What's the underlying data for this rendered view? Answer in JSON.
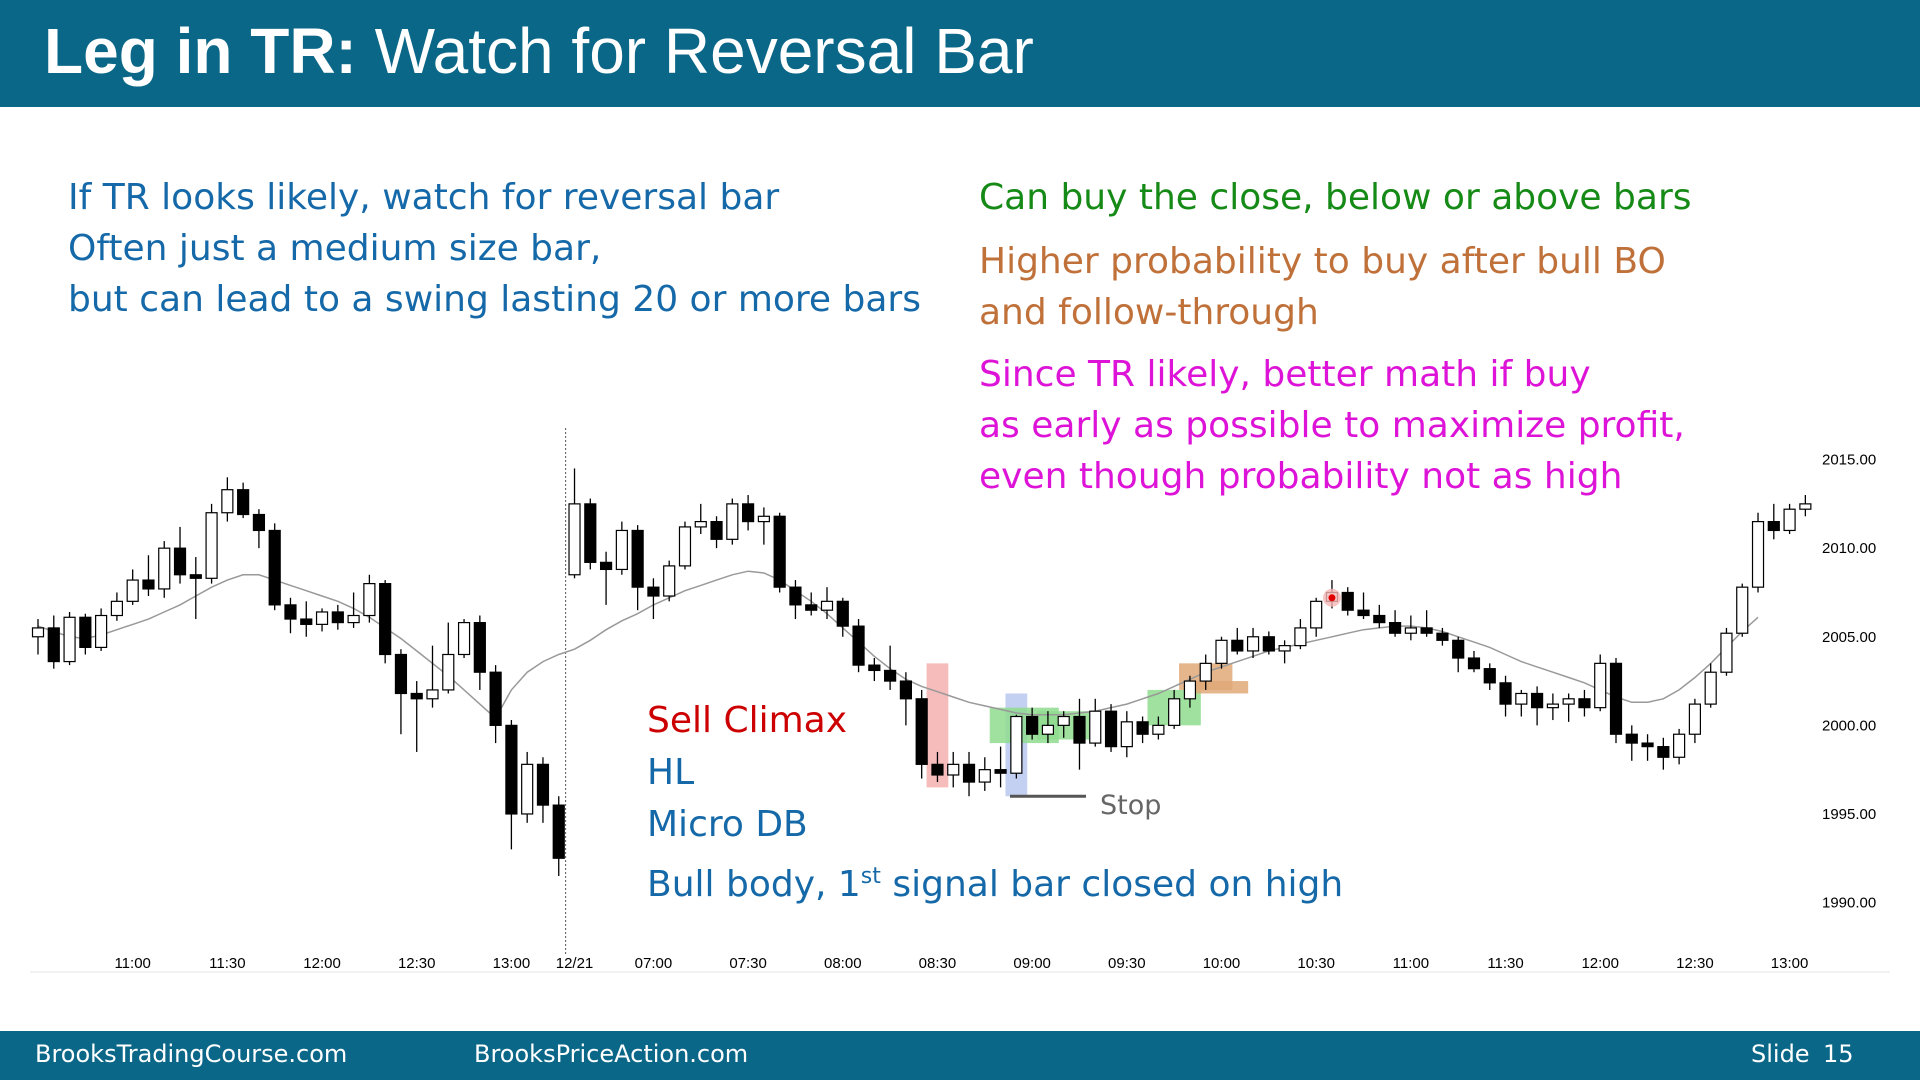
{
  "slide": {
    "title_bold": "Leg in TR:",
    "title_rest": " Watch for Reversal Bar",
    "left_notes": [
      "If TR looks likely, watch for reversal bar",
      "Often just a medium size bar,",
      "but can lead to a swing lasting 20 or more bars"
    ],
    "right_green": "Can buy the close, below or above bars",
    "right_orange": [
      "Higher probability to buy after bull BO",
      "and follow-through"
    ],
    "right_magenta": [
      "Since TR likely, better math if buy",
      "as early as possible to maximize profit,",
      "even though probability not as high"
    ],
    "chart_labels": {
      "sell_climax": "Sell Climax",
      "hl": "HL",
      "micro_db": "Micro DB",
      "bull_body_pre": "Bull body, 1",
      "bull_body_sup": "st",
      "bull_body_post": " signal bar closed on high",
      "stop": "Stop"
    },
    "footer": {
      "site1": "BrooksTradingCourse.com",
      "site2": "BrooksPriceAction.com",
      "slide_label": "Slide",
      "slide_number": "15"
    },
    "colors": {
      "header_bg": "#0b6788",
      "blue_text": "#1569a8",
      "green_text": "#168a16",
      "orange_text": "#c0713a",
      "magenta_text": "#dd14d8",
      "red_text": "#cc0000"
    }
  },
  "chart_data": {
    "type": "candlestick",
    "y_ticks": [
      "2015.00",
      "2010.00",
      "2005.00",
      "2000.00",
      "1995.00",
      "1990.00"
    ],
    "y_tick_values": [
      2015,
      2010,
      2005,
      2000,
      1995,
      1990
    ],
    "ylim": [
      1988,
      2016.5
    ],
    "x_ticks": [
      "11:00",
      "11:30",
      "12:00",
      "12:30",
      "13:00",
      "12/21",
      "07:00",
      "07:30",
      "08:00",
      "08:30",
      "09:00",
      "09:30",
      "10:00",
      "10:30",
      "11:00",
      "11:30",
      "12:00",
      "12:30",
      "13:00"
    ],
    "x_tick_bar_index": [
      6,
      12,
      18,
      24,
      30,
      34,
      39,
      45,
      51,
      57,
      63,
      69,
      75,
      81,
      87,
      93,
      99,
      105,
      111
    ],
    "session_break_bar": 34,
    "grid": false,
    "legend": "none",
    "moving_average": [
      2005.6,
      2005.3,
      2005.0,
      2004.9,
      2005.1,
      2005.4,
      2005.7,
      2006.0,
      2006.4,
      2006.8,
      2007.3,
      2007.8,
      2008.2,
      2008.5,
      2008.5,
      2008.2,
      2007.9,
      2007.6,
      2007.3,
      2007.0,
      2006.6,
      2006.1,
      2005.5,
      2004.9,
      2004.2,
      2003.5,
      2002.8,
      2002.0,
      2001.2,
      2000.4,
      2002.0,
      2003.0,
      2003.6,
      2004.0,
      2004.3,
      2004.8,
      2005.4,
      2005.9,
      2006.3,
      2006.8,
      2007.2,
      2007.6,
      2007.9,
      2008.2,
      2008.5,
      2008.7,
      2008.6,
      2008.2,
      2007.6,
      2007.0,
      2006.3,
      2005.5,
      2004.7,
      2003.9,
      2003.2,
      2002.6,
      2002.2,
      2001.9,
      2001.6,
      2001.3,
      2001.1,
      2000.9,
      2000.7,
      2000.6,
      2000.6,
      2000.6,
      2000.7,
      2000.8,
      2001.0,
      2001.2,
      2001.5,
      2001.8,
      2002.2,
      2002.6,
      2003.0,
      2003.3,
      2003.6,
      2003.9,
      2004.2,
      2004.4,
      2004.6,
      2004.8,
      2005.0,
      2005.2,
      2005.4,
      2005.5,
      2005.6,
      2005.6,
      2005.5,
      2005.3,
      2005.0,
      2004.7,
      2004.4,
      2004.0,
      2003.6,
      2003.3,
      2003.0,
      2002.7,
      2002.4,
      2002.0,
      2001.6,
      2001.3,
      2001.3,
      2001.5,
      2002.0,
      2002.7,
      2003.5,
      2004.4,
      2005.3,
      2006.1
    ],
    "bars": [
      {
        "o": 2005.0,
        "h": 2006.0,
        "l": 2004.0,
        "c": 2005.5
      },
      {
        "o": 2005.5,
        "h": 2006.2,
        "l": 2003.2,
        "c": 2003.6
      },
      {
        "o": 2003.6,
        "h": 2006.4,
        "l": 2003.4,
        "c": 2006.1
      },
      {
        "o": 2006.1,
        "h": 2006.3,
        "l": 2004.0,
        "c": 2004.4
      },
      {
        "o": 2004.4,
        "h": 2006.6,
        "l": 2004.2,
        "c": 2006.2
      },
      {
        "o": 2006.2,
        "h": 2007.5,
        "l": 2005.9,
        "c": 2007.0
      },
      {
        "o": 2007.0,
        "h": 2008.8,
        "l": 2006.8,
        "c": 2008.2
      },
      {
        "o": 2008.2,
        "h": 2009.6,
        "l": 2007.3,
        "c": 2007.7
      },
      {
        "o": 2007.7,
        "h": 2010.4,
        "l": 2007.2,
        "c": 2010.0
      },
      {
        "o": 2010.0,
        "h": 2011.2,
        "l": 2008.0,
        "c": 2008.5
      },
      {
        "o": 2008.5,
        "h": 2009.5,
        "l": 2006.0,
        "c": 2008.3
      },
      {
        "o": 2008.3,
        "h": 2012.5,
        "l": 2008.0,
        "c": 2012.0
      },
      {
        "o": 2012.0,
        "h": 2014.0,
        "l": 2011.5,
        "c": 2013.3
      },
      {
        "o": 2013.3,
        "h": 2013.7,
        "l": 2011.7,
        "c": 2011.9
      },
      {
        "o": 2011.9,
        "h": 2012.2,
        "l": 2010.0,
        "c": 2011.0
      },
      {
        "o": 2011.0,
        "h": 2011.4,
        "l": 2006.5,
        "c": 2006.8
      },
      {
        "o": 2006.8,
        "h": 2007.2,
        "l": 2005.2,
        "c": 2006.0
      },
      {
        "o": 2006.0,
        "h": 2007.0,
        "l": 2005.0,
        "c": 2005.7
      },
      {
        "o": 2005.7,
        "h": 2006.6,
        "l": 2005.3,
        "c": 2006.4
      },
      {
        "o": 2006.4,
        "h": 2006.8,
        "l": 2005.4,
        "c": 2005.8
      },
      {
        "o": 2005.8,
        "h": 2007.5,
        "l": 2005.5,
        "c": 2006.2
      },
      {
        "o": 2006.2,
        "h": 2008.5,
        "l": 2005.8,
        "c": 2008.0
      },
      {
        "o": 2008.0,
        "h": 2008.2,
        "l": 2003.5,
        "c": 2004.0
      },
      {
        "o": 2004.0,
        "h": 2004.3,
        "l": 1999.5,
        "c": 2001.8
      },
      {
        "o": 2001.8,
        "h": 2002.5,
        "l": 1998.5,
        "c": 2001.5
      },
      {
        "o": 2001.5,
        "h": 2004.5,
        "l": 2001.0,
        "c": 2002.0
      },
      {
        "o": 2002.0,
        "h": 2005.8,
        "l": 2001.8,
        "c": 2004.0
      },
      {
        "o": 2004.0,
        "h": 2006.0,
        "l": 2003.8,
        "c": 2005.8
      },
      {
        "o": 2005.8,
        "h": 2006.2,
        "l": 2002.0,
        "c": 2003.0
      },
      {
        "o": 2003.0,
        "h": 2003.4,
        "l": 1999.0,
        "c": 2000.0
      },
      {
        "o": 2000.0,
        "h": 2000.3,
        "l": 1993.0,
        "c": 1995.0
      },
      {
        "o": 1995.0,
        "h": 1998.5,
        "l": 1994.5,
        "c": 1997.8
      },
      {
        "o": 1997.8,
        "h": 1998.2,
        "l": 1994.5,
        "c": 1995.5
      },
      {
        "o": 1995.5,
        "h": 1996.0,
        "l": 1991.5,
        "c": 1992.5
      },
      {
        "o": 2008.5,
        "h": 2014.5,
        "l": 2008.3,
        "c": 2012.5
      },
      {
        "o": 2012.5,
        "h": 2012.8,
        "l": 2008.8,
        "c": 2009.2
      },
      {
        "o": 2009.2,
        "h": 2009.8,
        "l": 2006.8,
        "c": 2008.8
      },
      {
        "o": 2008.8,
        "h": 2011.5,
        "l": 2008.5,
        "c": 2011.0
      },
      {
        "o": 2011.0,
        "h": 2011.3,
        "l": 2006.5,
        "c": 2007.8
      },
      {
        "o": 2007.8,
        "h": 2008.3,
        "l": 2006.0,
        "c": 2007.3
      },
      {
        "o": 2007.3,
        "h": 2009.3,
        "l": 2007.0,
        "c": 2009.0
      },
      {
        "o": 2009.0,
        "h": 2011.5,
        "l": 2008.8,
        "c": 2011.2
      },
      {
        "o": 2011.2,
        "h": 2012.5,
        "l": 2010.8,
        "c": 2011.5
      },
      {
        "o": 2011.5,
        "h": 2011.8,
        "l": 2010.0,
        "c": 2010.5
      },
      {
        "o": 2010.5,
        "h": 2012.8,
        "l": 2010.2,
        "c": 2012.5
      },
      {
        "o": 2012.5,
        "h": 2013.0,
        "l": 2011.0,
        "c": 2011.5
      },
      {
        "o": 2011.5,
        "h": 2012.3,
        "l": 2010.2,
        "c": 2011.8
      },
      {
        "o": 2011.8,
        "h": 2012.0,
        "l": 2007.5,
        "c": 2007.8
      },
      {
        "o": 2007.8,
        "h": 2008.2,
        "l": 2006.0,
        "c": 2006.8
      },
      {
        "o": 2006.8,
        "h": 2007.5,
        "l": 2006.2,
        "c": 2006.5
      },
      {
        "o": 2006.5,
        "h": 2007.8,
        "l": 2006.0,
        "c": 2007.0
      },
      {
        "o": 2007.0,
        "h": 2007.2,
        "l": 2005.0,
        "c": 2005.6
      },
      {
        "o": 2005.6,
        "h": 2006.0,
        "l": 2003.0,
        "c": 2003.4
      },
      {
        "o": 2003.4,
        "h": 2003.8,
        "l": 2002.5,
        "c": 2003.1
      },
      {
        "o": 2003.1,
        "h": 2004.5,
        "l": 2002.0,
        "c": 2002.5
      },
      {
        "o": 2002.5,
        "h": 2003.0,
        "l": 2000.0,
        "c": 2001.5
      },
      {
        "o": 2001.5,
        "h": 2002.0,
        "l": 1997.0,
        "c": 1997.8
      },
      {
        "o": 1997.8,
        "h": 1998.5,
        "l": 1996.8,
        "c": 1997.2
      },
      {
        "o": 1997.2,
        "h": 1998.5,
        "l": 1996.5,
        "c": 1997.8
      },
      {
        "o": 1997.8,
        "h": 1998.5,
        "l": 1996.0,
        "c": 1996.8
      },
      {
        "o": 1996.8,
        "h": 1998.2,
        "l": 1996.3,
        "c": 1997.5
      },
      {
        "o": 1997.5,
        "h": 1998.8,
        "l": 1996.5,
        "c": 1997.3
      },
      {
        "o": 1997.3,
        "h": 2000.6,
        "l": 1997.0,
        "c": 2000.5
      },
      {
        "o": 2000.5,
        "h": 2001.0,
        "l": 1999.2,
        "c": 1999.5
      },
      {
        "o": 1999.5,
        "h": 2000.8,
        "l": 1999.0,
        "c": 2000.0
      },
      {
        "o": 2000.0,
        "h": 2000.8,
        "l": 1999.3,
        "c": 2000.5
      },
      {
        "o": 2000.5,
        "h": 2001.5,
        "l": 1997.5,
        "c": 1999.0
      },
      {
        "o": 1999.0,
        "h": 2001.5,
        "l": 1998.8,
        "c": 2000.8
      },
      {
        "o": 2000.8,
        "h": 2001.2,
        "l": 1998.5,
        "c": 1998.8
      },
      {
        "o": 1998.8,
        "h": 2000.8,
        "l": 1998.2,
        "c": 2000.2
      },
      {
        "o": 2000.2,
        "h": 2000.5,
        "l": 1999.0,
        "c": 1999.5
      },
      {
        "o": 1999.5,
        "h": 2000.5,
        "l": 1999.2,
        "c": 2000.0
      },
      {
        "o": 2000.0,
        "h": 2002.0,
        "l": 1999.8,
        "c": 2001.5
      },
      {
        "o": 2001.5,
        "h": 2002.8,
        "l": 2001.0,
        "c": 2002.5
      },
      {
        "o": 2002.5,
        "h": 2004.0,
        "l": 2002.0,
        "c": 2003.5
      },
      {
        "o": 2003.5,
        "h": 2005.0,
        "l": 2003.2,
        "c": 2004.8
      },
      {
        "o": 2004.8,
        "h": 2005.5,
        "l": 2004.0,
        "c": 2004.2
      },
      {
        "o": 2004.2,
        "h": 2005.5,
        "l": 2003.8,
        "c": 2005.0
      },
      {
        "o": 2005.0,
        "h": 2005.3,
        "l": 2004.0,
        "c": 2004.2
      },
      {
        "o": 2004.2,
        "h": 2004.8,
        "l": 2003.5,
        "c": 2004.5
      },
      {
        "o": 2004.5,
        "h": 2006.0,
        "l": 2004.3,
        "c": 2005.5
      },
      {
        "o": 2005.5,
        "h": 2007.2,
        "l": 2005.0,
        "c": 2007.0
      },
      {
        "o": 2007.0,
        "h": 2008.2,
        "l": 2006.6,
        "c": 2007.5
      },
      {
        "o": 2007.5,
        "h": 2007.8,
        "l": 2006.2,
        "c": 2006.5
      },
      {
        "o": 2006.5,
        "h": 2007.5,
        "l": 2006.0,
        "c": 2006.2
      },
      {
        "o": 2006.2,
        "h": 2006.8,
        "l": 2005.5,
        "c": 2005.8
      },
      {
        "o": 2005.8,
        "h": 2006.5,
        "l": 2005.0,
        "c": 2005.2
      },
      {
        "o": 2005.2,
        "h": 2006.2,
        "l": 2004.8,
        "c": 2005.5
      },
      {
        "o": 2005.5,
        "h": 2006.5,
        "l": 2005.0,
        "c": 2005.2
      },
      {
        "o": 2005.2,
        "h": 2005.5,
        "l": 2004.5,
        "c": 2004.8
      },
      {
        "o": 2004.8,
        "h": 2005.0,
        "l": 2003.0,
        "c": 2003.8
      },
      {
        "o": 2003.8,
        "h": 2004.2,
        "l": 2003.0,
        "c": 2003.2
      },
      {
        "o": 2003.2,
        "h": 2003.5,
        "l": 2002.0,
        "c": 2002.4
      },
      {
        "o": 2002.4,
        "h": 2002.8,
        "l": 2000.5,
        "c": 2001.2
      },
      {
        "o": 2001.2,
        "h": 2002.0,
        "l": 2000.5,
        "c": 2001.8
      },
      {
        "o": 2001.8,
        "h": 2002.2,
        "l": 2000.0,
        "c": 2001.0
      },
      {
        "o": 2001.0,
        "h": 2001.8,
        "l": 2000.3,
        "c": 2001.2
      },
      {
        "o": 2001.2,
        "h": 2001.8,
        "l": 2000.2,
        "c": 2001.5
      },
      {
        "o": 2001.5,
        "h": 2002.0,
        "l": 2000.5,
        "c": 2001.0
      },
      {
        "o": 2001.0,
        "h": 2004.0,
        "l": 2000.8,
        "c": 2003.5
      },
      {
        "o": 2003.5,
        "h": 2003.8,
        "l": 1999.0,
        "c": 1999.5
      },
      {
        "o": 1999.5,
        "h": 2000.0,
        "l": 1998.0,
        "c": 1999.0
      },
      {
        "o": 1999.0,
        "h": 1999.5,
        "l": 1998.0,
        "c": 1998.8
      },
      {
        "o": 1998.8,
        "h": 1999.3,
        "l": 1997.5,
        "c": 1998.2
      },
      {
        "o": 1998.2,
        "h": 1999.8,
        "l": 1997.8,
        "c": 1999.5
      },
      {
        "o": 1999.5,
        "h": 2001.5,
        "l": 1999.0,
        "c": 2001.2
      },
      {
        "o": 2001.2,
        "h": 2003.5,
        "l": 2001.0,
        "c": 2003.0
      },
      {
        "o": 2003.0,
        "h": 2005.5,
        "l": 2002.8,
        "c": 2005.2
      },
      {
        "o": 2005.2,
        "h": 2008.0,
        "l": 2005.0,
        "c": 2007.8
      },
      {
        "o": 2007.8,
        "h": 2012.0,
        "l": 2007.5,
        "c": 2011.5
      },
      {
        "o": 2011.5,
        "h": 2012.5,
        "l": 2010.5,
        "c": 2011.0
      },
      {
        "o": 2011.0,
        "h": 2012.5,
        "l": 2010.8,
        "c": 2012.2
      },
      {
        "o": 2012.2,
        "h": 2013.0,
        "l": 2011.8,
        "c": 2012.5
      }
    ],
    "highlights": [
      {
        "label": "sell-climax-box",
        "from_bar": 57,
        "to_bar": 57,
        "y_low": 1996.5,
        "y_high": 2003.5,
        "color": "#f4b0b0"
      },
      {
        "label": "hl-box",
        "from_bar": 62,
        "to_bar": 62,
        "y_low": 1996.0,
        "y_high": 2001.8,
        "color": "#b8c8f0"
      },
      {
        "label": "green-box-1",
        "from_bar": 61,
        "to_bar": 64,
        "y_low": 1999.0,
        "y_high": 2001.0,
        "color": "#8fdc8f"
      },
      {
        "label": "green-box-2",
        "from_bar": 64,
        "to_bar": 66,
        "y_low": 1999.2,
        "y_high": 2000.8,
        "color": "#8fdc8f"
      },
      {
        "label": "green-box-3",
        "from_bar": 71,
        "to_bar": 73,
        "y_low": 2000.0,
        "y_high": 2002.0,
        "color": "#8fdc8f"
      },
      {
        "label": "orange-box-1",
        "from_bar": 73,
        "to_bar": 75,
        "y_low": 2002.0,
        "y_high": 2003.5,
        "color": "#e0a878"
      },
      {
        "label": "orange-box-2",
        "from_bar": 74,
        "to_bar": 76,
        "y_low": 2001.8,
        "y_high": 2002.5,
        "color": "#e0a878"
      }
    ],
    "stop_level": 1996.0,
    "marker_bar": 82,
    "marker_price": 2007.2
  }
}
